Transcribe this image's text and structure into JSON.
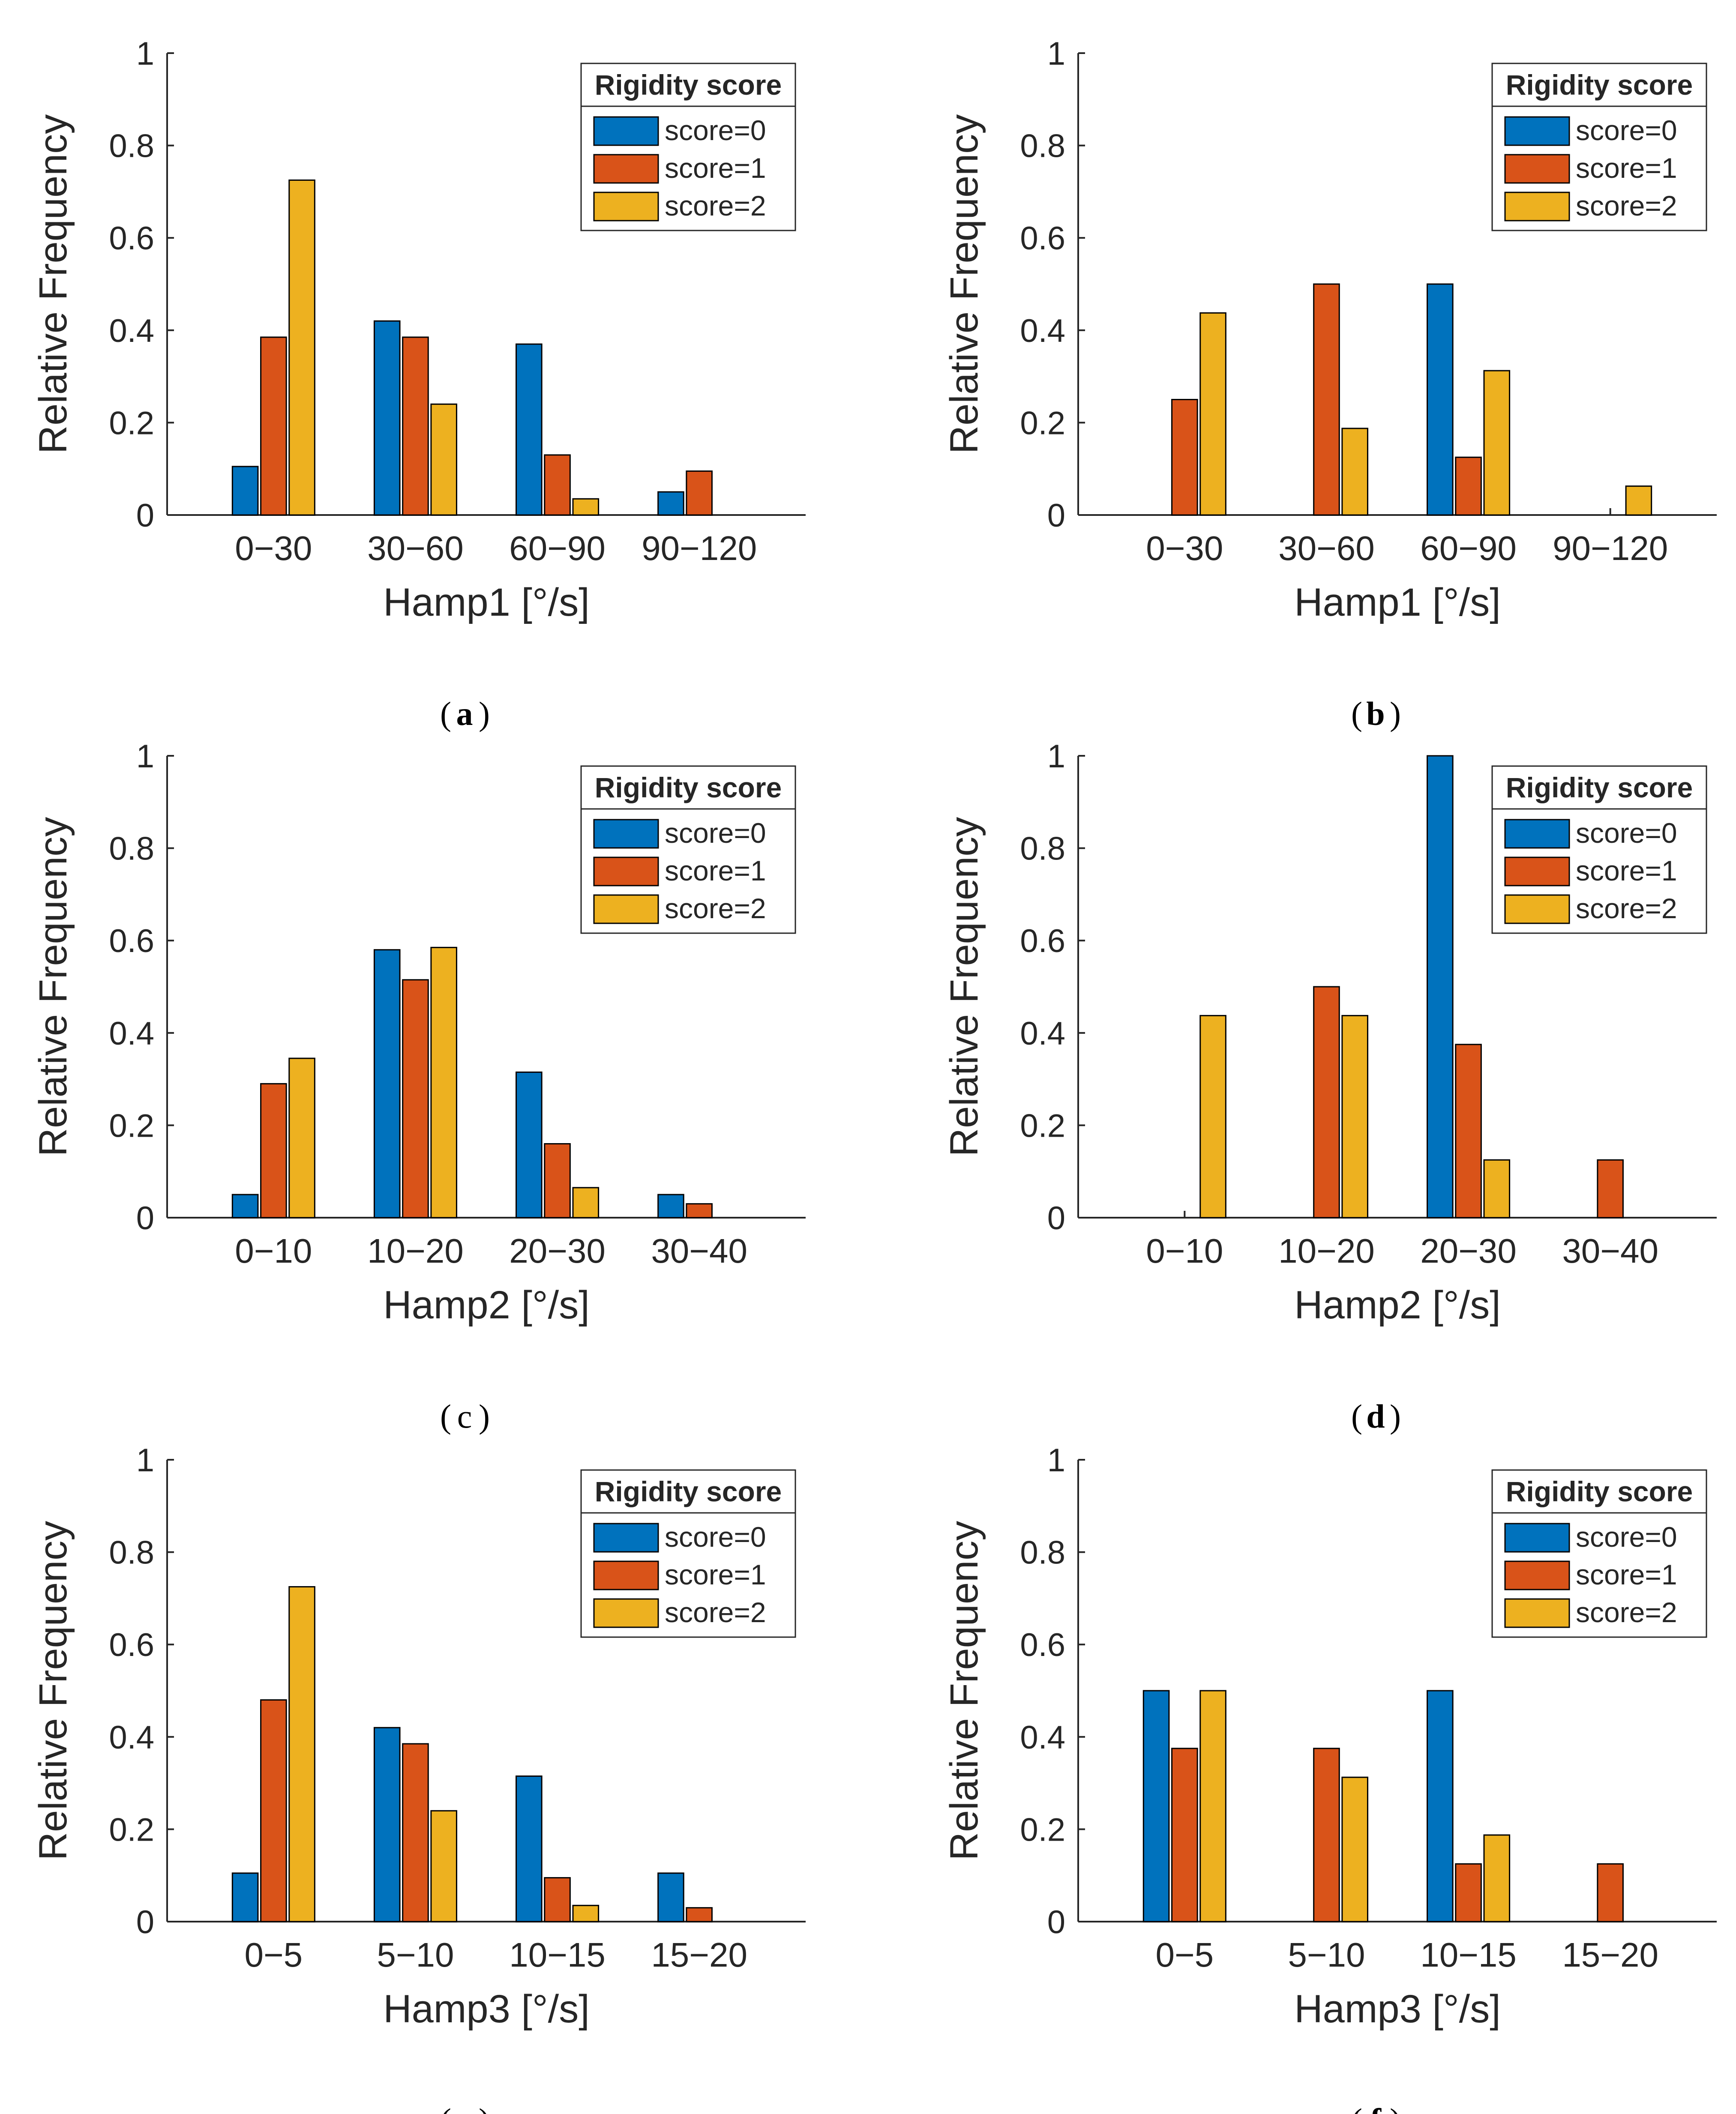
{
  "legend_title": "Rigidity score",
  "y_axis_label": "Relative Frequency",
  "y_ticks": [
    "0",
    "0.2",
    "0.4",
    "0.6",
    "0.8",
    "1"
  ],
  "series_colors": [
    "#0072BD",
    "#D95319",
    "#EDB120"
  ],
  "chart_data": [
    {
      "type": "bar",
      "panel_label": "a",
      "xlabel": "Hamp1 [°/s]",
      "ylabel": "Relative Frequency",
      "ylim": [
        0,
        1
      ],
      "categories": [
        "0−30",
        "30−60",
        "60−90",
        "90−120"
      ],
      "legend_title": "Rigidity score",
      "legend_position": "top-right",
      "series": [
        {
          "name": "score=0",
          "values": [
            0.105,
            0.42,
            0.37,
            0.05
          ]
        },
        {
          "name": "score=1",
          "values": [
            0.385,
            0.385,
            0.13,
            0.095
          ]
        },
        {
          "name": "score=2",
          "values": [
            0.725,
            0.24,
            0.035,
            0
          ]
        }
      ]
    },
    {
      "type": "bar",
      "panel_label": "b",
      "xlabel": "Hamp1 [°/s]",
      "ylabel": "Relative Frequency",
      "ylim": [
        0,
        1
      ],
      "categories": [
        "0−30",
        "30−60",
        "60−90",
        "90−120"
      ],
      "legend_title": "Rigidity score",
      "legend_position": "top-right",
      "series": [
        {
          "name": "score=0",
          "values": [
            0,
            0,
            0.5,
            0
          ]
        },
        {
          "name": "score=1",
          "values": [
            0.25,
            0.5,
            0.125,
            0
          ]
        },
        {
          "name": "score=2",
          "values": [
            0.4375,
            0.1875,
            0.3125,
            0.0625
          ]
        }
      ]
    },
    {
      "type": "bar",
      "panel_label": "c",
      "xlabel": "Hamp2 [°/s]",
      "ylabel": "Relative Frequency",
      "ylim": [
        0,
        1
      ],
      "categories": [
        "0−10",
        "10−20",
        "20−30",
        "30−40"
      ],
      "legend_title": "Rigidity score",
      "legend_position": "top-right",
      "series": [
        {
          "name": "score=0",
          "values": [
            0.05,
            0.58,
            0.315,
            0.05
          ]
        },
        {
          "name": "score=1",
          "values": [
            0.29,
            0.515,
            0.16,
            0.03
          ]
        },
        {
          "name": "score=2",
          "values": [
            0.345,
            0.585,
            0.065,
            0
          ]
        }
      ]
    },
    {
      "type": "bar",
      "panel_label": "d",
      "xlabel": "Hamp2 [°/s]",
      "ylabel": "Relative Frequency",
      "ylim": [
        0,
        1
      ],
      "categories": [
        "0−10",
        "10−20",
        "20−30",
        "30−40"
      ],
      "legend_title": "Rigidity score",
      "legend_position": "top-right",
      "series": [
        {
          "name": "score=0",
          "values": [
            0,
            0,
            1.0,
            0
          ]
        },
        {
          "name": "score=1",
          "values": [
            0,
            0.5,
            0.375,
            0.125
          ]
        },
        {
          "name": "score=2",
          "values": [
            0.4375,
            0.4375,
            0.125,
            0
          ]
        }
      ]
    },
    {
      "type": "bar",
      "panel_label": "e",
      "xlabel": "Hamp3 [°/s]",
      "ylabel": "Relative Frequency",
      "ylim": [
        0,
        1
      ],
      "categories": [
        "0−5",
        "5−10",
        "10−15",
        "15−20"
      ],
      "legend_title": "Rigidity score",
      "legend_position": "top-right",
      "series": [
        {
          "name": "score=0",
          "values": [
            0.105,
            0.42,
            0.315,
            0.105
          ]
        },
        {
          "name": "score=1",
          "values": [
            0.48,
            0.385,
            0.095,
            0.03
          ]
        },
        {
          "name": "score=2",
          "values": [
            0.725,
            0.24,
            0.035,
            0
          ]
        }
      ]
    },
    {
      "type": "bar",
      "panel_label": "f",
      "xlabel": "Hamp3 [°/s]",
      "ylabel": "Relative Frequency",
      "ylim": [
        0,
        1
      ],
      "categories": [
        "0−5",
        "5−10",
        "10−15",
        "15−20"
      ],
      "legend_title": "Rigidity score",
      "legend_position": "top-right",
      "series": [
        {
          "name": "score=0",
          "values": [
            0.5,
            0,
            0.5,
            0
          ]
        },
        {
          "name": "score=1",
          "values": [
            0.375,
            0.375,
            0.125,
            0.125
          ]
        },
        {
          "name": "score=2",
          "values": [
            0.5,
            0.3125,
            0.1875,
            0
          ]
        }
      ]
    }
  ]
}
